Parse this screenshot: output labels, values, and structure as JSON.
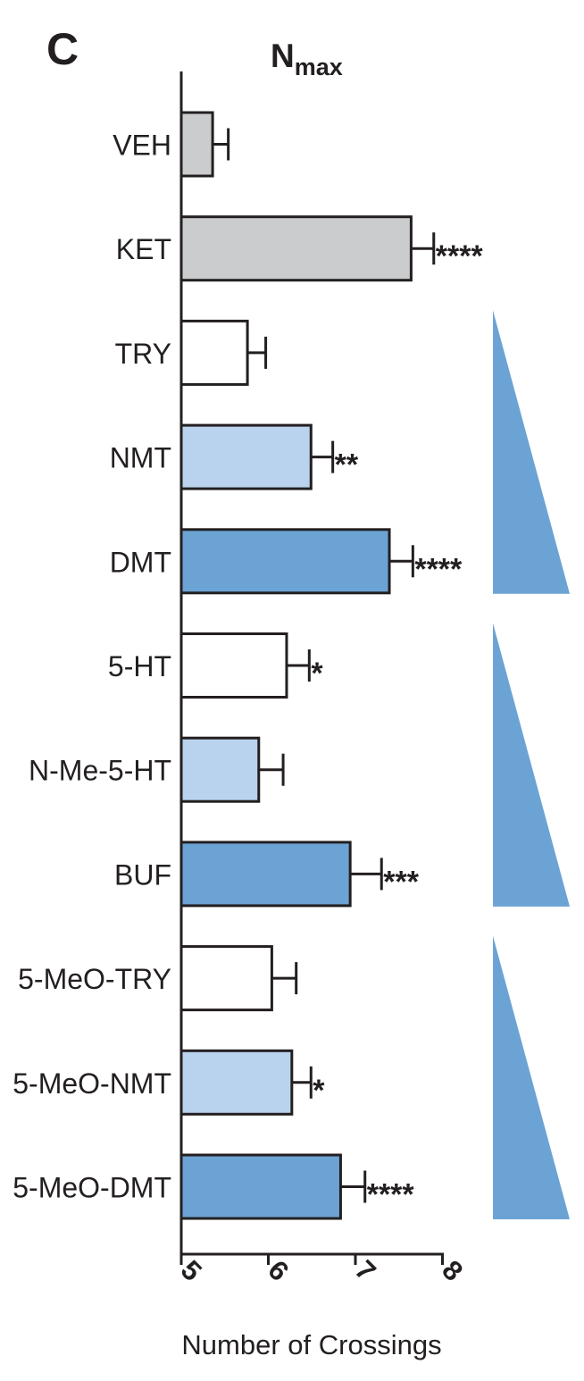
{
  "panel_label": "C",
  "chart_data": {
    "type": "bar",
    "orientation": "horizontal",
    "title": "N",
    "title_subscript": "max",
    "xlabel": "Number of Crossings",
    "ylabel": "",
    "xlim": [
      5,
      8
    ],
    "xticks": [
      5,
      6,
      7,
      8
    ],
    "categories": [
      "VEH",
      "KET",
      "TRY",
      "NMT",
      "DMT",
      "5-HT",
      "N-Me-5-HT",
      "BUF",
      "5-MeO-TRY",
      "5-MeO-NMT",
      "5-MeO-DMT"
    ],
    "values": [
      5.36,
      7.64,
      5.76,
      6.49,
      7.39,
      6.21,
      5.89,
      6.94,
      6.04,
      6.27,
      6.83
    ],
    "errors": [
      0.18,
      0.26,
      0.21,
      0.25,
      0.27,
      0.26,
      0.28,
      0.36,
      0.28,
      0.22,
      0.28
    ],
    "significance": [
      "",
      "****",
      "",
      "**",
      "****",
      "*",
      "",
      "***",
      "",
      "*",
      "****"
    ],
    "colors": [
      "#cbcccd",
      "#cbcccd",
      "#ffffff",
      "#b9d3ee",
      "#6ca3d5",
      "#ffffff",
      "#b9d3ee",
      "#6ca3d5",
      "#ffffff",
      "#b9d3ee",
      "#6ca3d5"
    ],
    "grid": false,
    "group_triangles": [
      {
        "first": "TRY",
        "last": "DMT",
        "color": "#6ca3d5"
      },
      {
        "first": "5-HT",
        "last": "BUF",
        "color": "#6ca3d5"
      },
      {
        "first": "5-MeO-TRY",
        "last": "5-MeO-DMT",
        "color": "#6ca3d5"
      }
    ]
  }
}
